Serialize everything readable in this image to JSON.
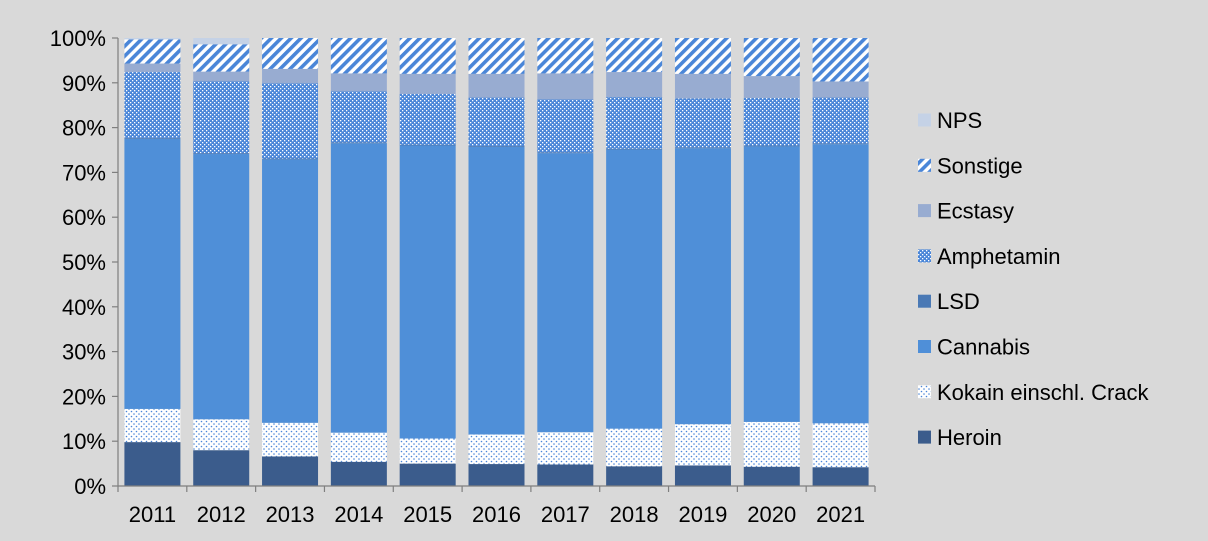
{
  "chart_data": {
    "type": "bar",
    "stacked": true,
    "categories": [
      "2011",
      "2012",
      "2013",
      "2014",
      "2015",
      "2016",
      "2017",
      "2018",
      "2019",
      "2020",
      "2021"
    ],
    "ylim": [
      0,
      100
    ],
    "y_ticks": [
      "0%",
      "10%",
      "20%",
      "30%",
      "40%",
      "50%",
      "60%",
      "70%",
      "80%",
      "90%",
      "100%"
    ],
    "grid": false,
    "legend_position": "right",
    "series": [
      {
        "name": "Heroin",
        "color": "#3b5c8c",
        "pattern": "solid",
        "values": [
          9.8,
          8.0,
          6.6,
          5.4,
          5.0,
          4.9,
          4.8,
          4.4,
          4.6,
          4.3,
          4.2
        ]
      },
      {
        "name": "Kokain einschl. Crack",
        "color": "#4a86d8",
        "pattern": "dots",
        "values": [
          7.4,
          6.9,
          7.5,
          6.5,
          5.6,
          6.6,
          7.2,
          8.4,
          9.2,
          10.0,
          9.8
        ]
      },
      {
        "name": "Cannabis",
        "color": "#4f8fd8",
        "pattern": "solid",
        "values": [
          60.3,
          59.2,
          58.8,
          64.6,
          65.4,
          64.2,
          62.3,
          62.3,
          61.6,
          61.5,
          62.3
        ]
      },
      {
        "name": "LSD",
        "color": "#4a79b5",
        "pattern": "solid",
        "values": [
          0.2,
          0.2,
          0.2,
          0.2,
          0.2,
          0.2,
          0.2,
          0.2,
          0.2,
          0.2,
          0.2
        ]
      },
      {
        "name": "Amphetamin",
        "color": "#4a86d8",
        "pattern": "crosshatch",
        "values": [
          14.7,
          16.0,
          16.8,
          11.4,
          11.3,
          10.8,
          11.8,
          11.5,
          10.9,
          10.6,
          10.2
        ]
      },
      {
        "name": "Ecstasy",
        "color": "#98acd1",
        "pattern": "solid",
        "values": [
          1.9,
          2.2,
          3.2,
          4.0,
          4.5,
          5.3,
          5.8,
          5.6,
          5.5,
          4.9,
          3.6
        ]
      },
      {
        "name": "Sonstige",
        "color": "#4a86d8",
        "pattern": "diagonal",
        "values": [
          5.4,
          6.1,
          6.9,
          7.9,
          8.0,
          8.0,
          7.9,
          7.6,
          8.0,
          8.5,
          9.7
        ]
      },
      {
        "name": "NPS",
        "color": "#c5d2e6",
        "pattern": "solid",
        "values": [
          0.3,
          1.4,
          0.0,
          0.0,
          0.0,
          0.0,
          0.0,
          0.0,
          0.0,
          0.0,
          0.0
        ]
      }
    ]
  }
}
